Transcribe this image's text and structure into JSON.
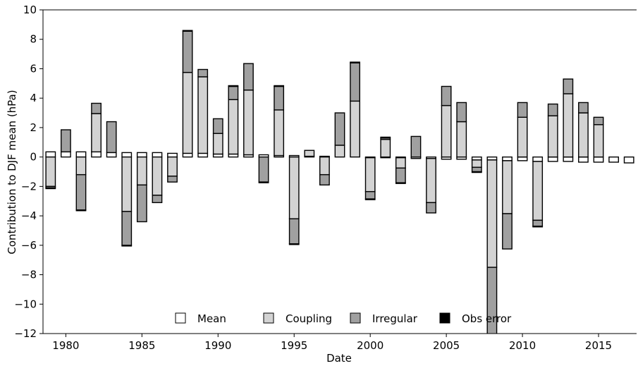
{
  "chart_data": {
    "type": "bar",
    "stacked": true,
    "xlabel": "Date",
    "ylabel": "Contribution to DJF mean (hPa)",
    "xlim": [
      1978.5,
      2017.5
    ],
    "ylim": [
      -12,
      10
    ],
    "x_ticks": [
      1980,
      1985,
      1990,
      1995,
      2000,
      2005,
      2010,
      2015
    ],
    "y_ticks": [
      -12,
      -10,
      -8,
      -6,
      -4,
      -2,
      0,
      2,
      4,
      6,
      8,
      10
    ],
    "grid": false,
    "legend": {
      "placement": "bottom-center",
      "entries": [
        {
          "label": "Mean",
          "color": "#ffffff"
        },
        {
          "label": "Coupling",
          "color": "#d3d3d3"
        },
        {
          "label": "Irregular",
          "color": "#a0a0a0"
        },
        {
          "label": "Obs error",
          "color": "#000000"
        }
      ]
    },
    "colors": {
      "Mean": "#ffffff",
      "Coupling": "#d3d3d3",
      "Irregular": "#a0a0a0",
      "Obs error": "#000000"
    },
    "series": [
      {
        "name": "Mean",
        "values": [
          0.35,
          0.35,
          0.35,
          0.35,
          0.3,
          0.3,
          0.3,
          0.3,
          0.25,
          0.25,
          0.25,
          0.2,
          0.2,
          0.15,
          0.15,
          0.1,
          0.1,
          0.05,
          0.05,
          0.0,
          0.0,
          -0.05,
          -0.05,
          -0.05,
          -0.1,
          -0.1,
          -0.15,
          -0.15,
          -0.2,
          -0.2,
          -0.25,
          -0.25,
          -0.3,
          -0.3,
          -0.3,
          -0.35,
          -0.35,
          -0.35,
          -0.4
        ]
      },
      {
        "name": "Coupling",
        "values": [
          -2.0,
          0.0,
          -1.2,
          2.6,
          0.0,
          -3.7,
          -1.9,
          -2.6,
          -1.3,
          5.5,
          5.2,
          1.4,
          3.7,
          4.4,
          0.0,
          3.1,
          -4.2,
          0.4,
          -1.2,
          0.8,
          3.8,
          -2.3,
          1.2,
          -0.7,
          0.0,
          -3.0,
          3.5,
          2.4,
          -0.5,
          -7.3,
          -3.6,
          2.7,
          -4.0,
          2.8,
          4.3,
          3.0,
          2.2,
          0.0,
          0.0
        ]
      },
      {
        "name": "Irregular",
        "values": [
          -0.1,
          1.5,
          -2.4,
          0.7,
          2.1,
          -2.3,
          -2.5,
          -0.5,
          -0.4,
          2.8,
          0.5,
          1.0,
          0.9,
          1.8,
          -1.7,
          1.6,
          -1.7,
          0.0,
          -0.7,
          2.2,
          2.6,
          -0.5,
          0.1,
          -1.0,
          1.4,
          -0.7,
          1.3,
          1.3,
          -0.3,
          -5.5,
          -2.4,
          1.0,
          -0.4,
          0.8,
          1.0,
          0.7,
          0.5,
          0.0,
          0.0
        ]
      },
      {
        "name": "Obs error",
        "values": [
          -0.05,
          0.0,
          -0.05,
          0.0,
          0.0,
          -0.05,
          0.0,
          0.0,
          0.0,
          0.05,
          0.0,
          0.0,
          0.05,
          0.0,
          -0.05,
          0.05,
          -0.05,
          0.0,
          0.0,
          0.0,
          0.05,
          -0.05,
          0.05,
          -0.05,
          0.0,
          0.0,
          0.0,
          0.0,
          -0.05,
          -0.05,
          0.0,
          0.0,
          -0.05,
          0.0,
          0.0,
          0.0,
          0.0,
          0.0,
          0.0
        ]
      }
    ],
    "x": [
      1979,
      1980,
      1981,
      1982,
      1983,
      1984,
      1985,
      1986,
      1987,
      1988,
      1989,
      1990,
      1991,
      1992,
      1993,
      1994,
      1995,
      1996,
      1997,
      1998,
      1999,
      2000,
      2001,
      2002,
      2003,
      2004,
      2005,
      2006,
      2007,
      2008,
      2009,
      2010,
      2011,
      2012,
      2013,
      2014,
      2015,
      2016,
      2017
    ]
  }
}
